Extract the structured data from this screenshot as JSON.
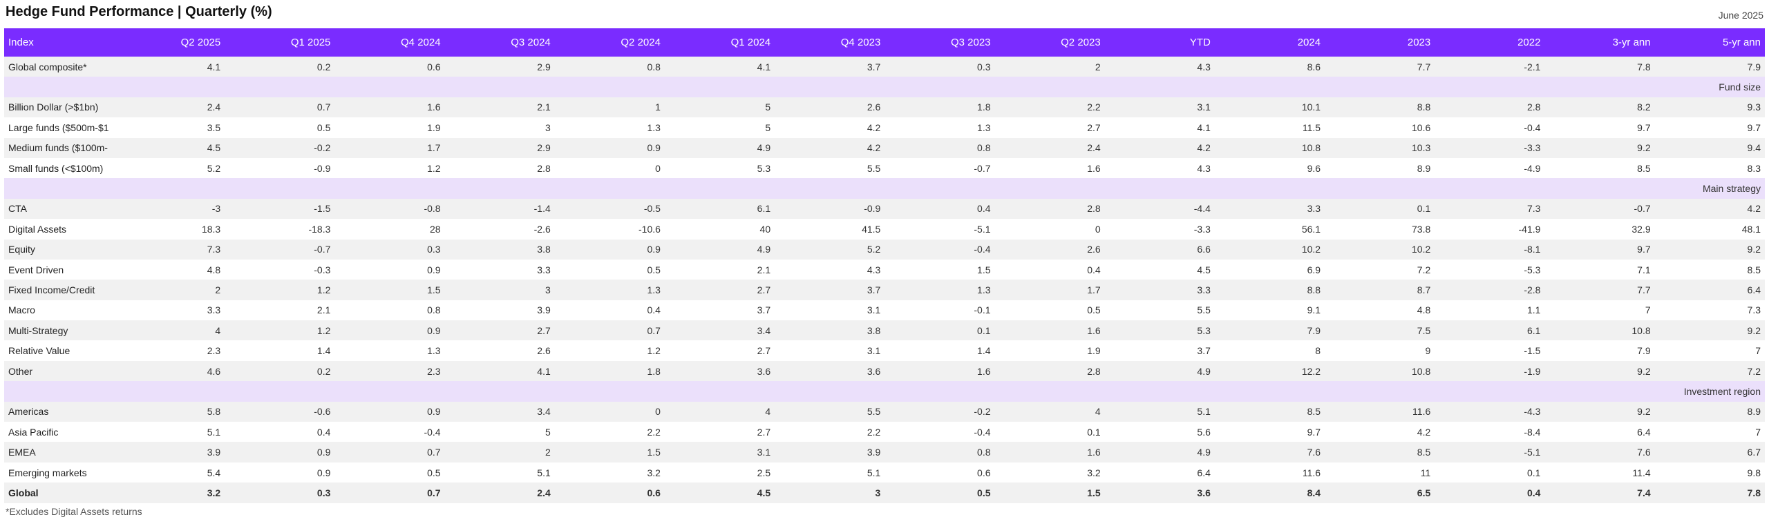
{
  "header": {
    "title": "Hedge Fund Performance | Quarterly (%)",
    "date": "June 2025"
  },
  "footnote": "*Excludes Digital Assets returns",
  "colors": {
    "header_bg": "#7a2cff",
    "section_bg": "#ebe0fb",
    "row_alt_bg": "#f1f1f1"
  },
  "chart_data": {
    "type": "table",
    "title": "Hedge Fund Performance | Quarterly (%)",
    "columns": [
      "Index",
      "Q2 2025",
      "Q1 2025",
      "Q4 2024",
      "Q3 2024",
      "Q2 2024",
      "Q1 2024",
      "Q4 2023",
      "Q3 2023",
      "Q2 2023",
      "YTD",
      "2024",
      "2023",
      "2022",
      "3-yr ann",
      "5-yr ann"
    ],
    "rows": [
      {
        "label": "Global composite*",
        "values": [
          4.1,
          0.2,
          0.6,
          2.9,
          0.8,
          4.1,
          3.7,
          0.3,
          2,
          4.3,
          8.6,
          7.7,
          -2.1,
          7.8,
          7.9
        ]
      },
      {
        "label": "Fund size",
        "section": true
      },
      {
        "label": "Billion Dollar (>$1bn)",
        "values": [
          2.4,
          0.7,
          1.6,
          2.1,
          1,
          5,
          2.6,
          1.8,
          2.2,
          3.1,
          10.1,
          8.8,
          2.8,
          8.2,
          9.3
        ]
      },
      {
        "label": "Large funds ($500m-$1",
        "values": [
          3.5,
          0.5,
          1.9,
          3,
          1.3,
          5,
          4.2,
          1.3,
          2.7,
          4.1,
          11.5,
          10.6,
          -0.4,
          9.7,
          9.7
        ]
      },
      {
        "label": "Medium funds ($100m-",
        "values": [
          4.5,
          -0.2,
          1.7,
          2.9,
          0.9,
          4.9,
          4.2,
          0.8,
          2.4,
          4.2,
          10.8,
          10.3,
          -3.3,
          9.2,
          9.4
        ]
      },
      {
        "label": "Small funds (<$100m)",
        "values": [
          5.2,
          -0.9,
          1.2,
          2.8,
          0,
          5.3,
          5.5,
          -0.7,
          1.6,
          4.3,
          9.6,
          8.9,
          -4.9,
          8.5,
          8.3
        ]
      },
      {
        "label": "Main strategy",
        "section": true
      },
      {
        "label": "CTA",
        "values": [
          -3,
          -1.5,
          -0.8,
          -1.4,
          -0.5,
          6.1,
          -0.9,
          0.4,
          2.8,
          -4.4,
          3.3,
          0.1,
          7.3,
          -0.7,
          4.2
        ]
      },
      {
        "label": "Digital Assets",
        "values": [
          18.3,
          -18.3,
          28,
          -2.6,
          -10.6,
          40,
          41.5,
          -5.1,
          0,
          -3.3,
          56.1,
          73.8,
          -41.9,
          32.9,
          48.1
        ]
      },
      {
        "label": "Equity",
        "values": [
          7.3,
          -0.7,
          0.3,
          3.8,
          0.9,
          4.9,
          5.2,
          -0.4,
          2.6,
          6.6,
          10.2,
          10.2,
          -8.1,
          9.7,
          9.2
        ]
      },
      {
        "label": "Event Driven",
        "values": [
          4.8,
          -0.3,
          0.9,
          3.3,
          0.5,
          2.1,
          4.3,
          1.5,
          0.4,
          4.5,
          6.9,
          7.2,
          -5.3,
          7.1,
          8.5
        ]
      },
      {
        "label": "Fixed Income/Credit",
        "values": [
          2,
          1.2,
          1.5,
          3,
          1.3,
          2.7,
          3.7,
          1.3,
          1.7,
          3.3,
          8.8,
          8.7,
          -2.8,
          7.7,
          6.4
        ]
      },
      {
        "label": "Macro",
        "values": [
          3.3,
          2.1,
          0.8,
          3.9,
          0.4,
          3.7,
          3.1,
          -0.1,
          0.5,
          5.5,
          9.1,
          4.8,
          1.1,
          7,
          7.3
        ]
      },
      {
        "label": "Multi-Strategy",
        "values": [
          4,
          1.2,
          0.9,
          2.7,
          0.7,
          3.4,
          3.8,
          0.1,
          1.6,
          5.3,
          7.9,
          7.5,
          6.1,
          10.8,
          9.2
        ]
      },
      {
        "label": "Relative Value",
        "values": [
          2.3,
          1.4,
          1.3,
          2.6,
          1.2,
          2.7,
          3.1,
          1.4,
          1.9,
          3.7,
          8,
          9,
          -1.5,
          7.9,
          7
        ]
      },
      {
        "label": "Other",
        "values": [
          4.6,
          0.2,
          2.3,
          4.1,
          1.8,
          3.6,
          3.6,
          1.6,
          2.8,
          4.9,
          12.2,
          10.8,
          -1.9,
          9.2,
          7.2
        ]
      },
      {
        "label": "Investment region",
        "section": true
      },
      {
        "label": "Americas",
        "values": [
          5.8,
          -0.6,
          0.9,
          3.4,
          0,
          4,
          5.5,
          -0.2,
          4,
          5.1,
          8.5,
          11.6,
          -4.3,
          9.2,
          8.9
        ]
      },
      {
        "label": "Asia Pacific",
        "values": [
          5.1,
          0.4,
          -0.4,
          5,
          2.2,
          2.7,
          2.2,
          -0.4,
          0.1,
          5.6,
          9.7,
          4.2,
          -8.4,
          6.4,
          7
        ]
      },
      {
        "label": "EMEA",
        "values": [
          3.9,
          0.9,
          0.7,
          2,
          1.5,
          3.1,
          3.9,
          0.8,
          1.6,
          4.9,
          7.6,
          8.5,
          -5.1,
          7.6,
          6.7
        ]
      },
      {
        "label": "Emerging markets",
        "values": [
          5.4,
          0.9,
          0.5,
          5.1,
          3.2,
          2.5,
          5.1,
          0.6,
          3.2,
          6.4,
          11.6,
          11,
          0.1,
          11.4,
          9.8
        ]
      },
      {
        "label": "Global",
        "bold": true,
        "values": [
          3.2,
          0.3,
          0.7,
          2.4,
          0.6,
          4.5,
          3,
          0.5,
          1.5,
          3.6,
          8.4,
          6.5,
          0.4,
          7.4,
          7.8
        ]
      }
    ]
  }
}
